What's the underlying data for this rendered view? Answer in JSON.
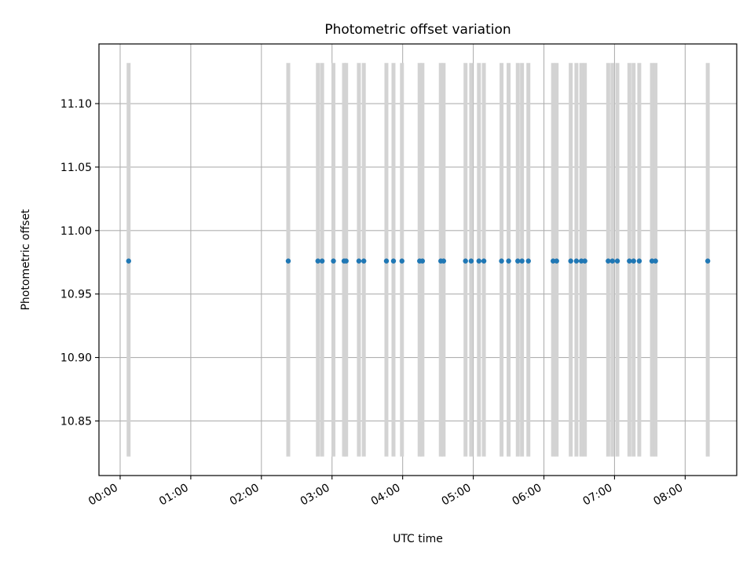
{
  "chart_data": {
    "type": "scatter",
    "title": "Photometric offset variation",
    "xlabel": "UTC time",
    "ylabel": "Photometric offset",
    "x_tick_labels": [
      "00:00",
      "01:00",
      "02:00",
      "03:00",
      "04:00",
      "05:00",
      "06:00",
      "07:00",
      "08:00"
    ],
    "x_ticks_hours": [
      0,
      1,
      2,
      3,
      4,
      5,
      6,
      7,
      8
    ],
    "xlim_hours": [
      -0.3,
      8.73
    ],
    "y_tick_labels": [
      "10.85",
      "10.90",
      "10.95",
      "11.00",
      "11.05",
      "11.10"
    ],
    "y_ticks": [
      10.85,
      10.9,
      10.95,
      11.0,
      11.05,
      11.1
    ],
    "ylim": [
      10.807,
      11.147
    ],
    "grid": true,
    "error_range": [
      10.822,
      11.132
    ],
    "point_color": "#1f77b4",
    "errorbar_color": "#d3d3d3",
    "series": [
      {
        "y": 10.976,
        "x_hours": [
          0.12,
          2.38,
          2.8,
          2.86,
          3.02,
          3.17,
          3.2,
          3.38,
          3.45,
          3.77,
          3.87,
          3.99,
          4.24,
          4.28,
          4.54,
          4.58,
          4.89,
          4.97,
          5.08,
          5.15,
          5.4,
          5.5,
          5.63,
          5.69,
          5.78,
          6.13,
          6.18,
          6.38,
          6.46,
          6.53,
          6.58,
          6.91,
          6.97,
          7.04,
          7.21,
          7.27,
          7.35,
          7.53,
          7.58,
          8.32
        ]
      }
    ]
  }
}
